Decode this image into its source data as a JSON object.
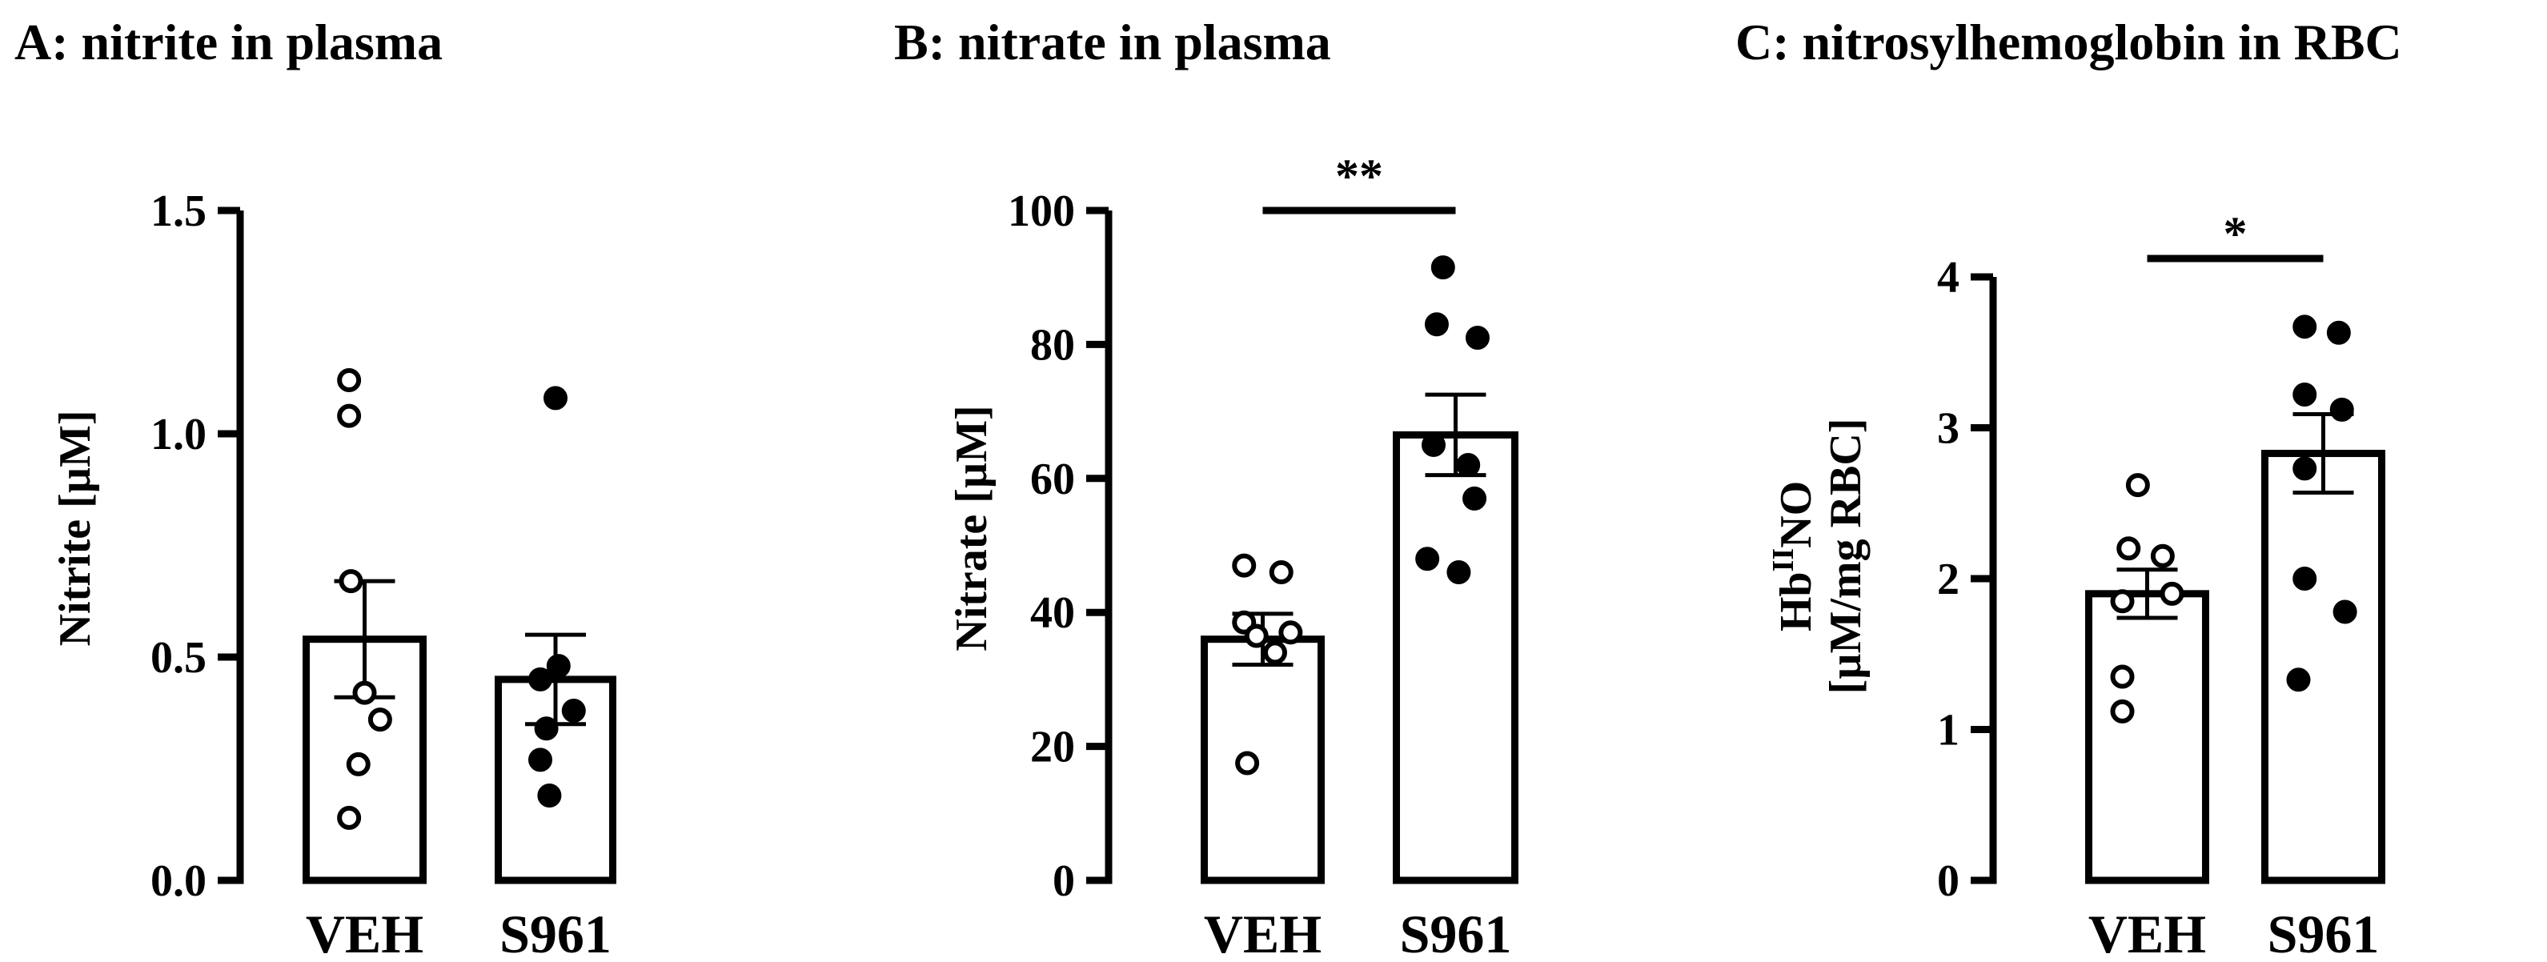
{
  "chart_data": [
    {
      "type": "bar",
      "title": "A: nitrite in plasma",
      "ylabel": "Nitrite [µM]",
      "ylim": [
        0,
        1.5
      ],
      "yticks": [
        "0.0",
        "0.5",
        "1.0",
        "1.5"
      ],
      "categories": [
        "VEH",
        "S961"
      ],
      "values": [
        0.54,
        0.45
      ],
      "error": [
        0.13,
        0.1
      ],
      "points": [
        [
          1.12,
          1.04,
          0.67,
          0.42,
          0.36,
          0.26,
          0.14
        ],
        [
          1.08,
          0.48,
          0.45,
          0.38,
          0.34,
          0.27,
          0.19
        ]
      ],
      "marker_fill": [
        "#ffffff",
        "#000000"
      ],
      "significance": ""
    },
    {
      "type": "bar",
      "title": "B: nitrate in plasma",
      "ylabel": "Nitrate [µM]",
      "ylim": [
        0,
        100
      ],
      "yticks": [
        "0",
        "20",
        "40",
        "60",
        "80",
        "100"
      ],
      "categories": [
        "VEH",
        "S961"
      ],
      "values": [
        36,
        66.5
      ],
      "error": [
        3.8,
        6
      ],
      "points": [
        [
          47,
          46,
          38.5,
          37,
          36.5,
          34,
          17.5
        ],
        [
          91.5,
          83,
          81,
          65,
          62,
          57,
          48,
          46
        ]
      ],
      "marker_fill": [
        "#ffffff",
        "#000000"
      ],
      "significance": "**"
    },
    {
      "type": "bar",
      "title": "C: nitrosylhemoglobin in RBC",
      "ylabel_main": "Hb",
      "ylabel_sup": "II",
      "ylabel_main2": "NO",
      "ylabel_line2": "[µM/mg RBC]",
      "ylim": [
        0,
        4
      ],
      "yticks": [
        "0",
        "1",
        "2",
        "3",
        "4"
      ],
      "categories": [
        "VEH",
        "S961"
      ],
      "values": [
        1.9,
        2.83
      ],
      "error": [
        0.16,
        0.26
      ],
      "points": [
        [
          2.62,
          2.2,
          2.15,
          1.9,
          1.85,
          1.35,
          1.12
        ],
        [
          3.67,
          3.63,
          3.22,
          3.12,
          2.73,
          2.0,
          1.78,
          1.33
        ]
      ],
      "marker_fill": [
        "#ffffff",
        "#000000"
      ],
      "significance": "*"
    }
  ]
}
